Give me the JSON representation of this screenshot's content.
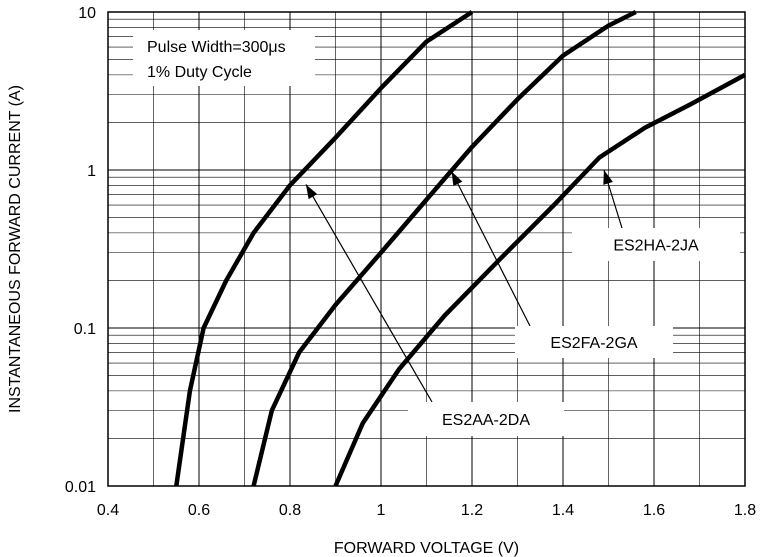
{
  "chart_data": {
    "type": "line",
    "title": "",
    "xlabel": "FORWARD VOLTAGE (V)",
    "ylabel": "INSTANTANEOUS FORWARD CURRENT (A)",
    "xlim": [
      0.4,
      1.8
    ],
    "ylim": [
      0.01,
      10
    ],
    "yscale": "log",
    "grid": true,
    "x_ticks": [
      0.4,
      0.6,
      0.8,
      1,
      1.2,
      1.4,
      1.6,
      1.8
    ],
    "x_tick_labels": [
      "0.4",
      "0.6",
      "0.8",
      "1",
      "1.2",
      "1.4",
      "1.6",
      "1.8"
    ],
    "y_tick_labels": [
      {
        "value": 0.01,
        "label": "0.01"
      },
      {
        "value": 0.1,
        "label": "0.1"
      },
      {
        "value": 1,
        "label": "1"
      },
      {
        "value": 10,
        "label": "10"
      }
    ],
    "series": [
      {
        "name": "ES2AA-2DA",
        "points": [
          [
            0.55,
            0.01
          ],
          [
            0.58,
            0.04
          ],
          [
            0.61,
            0.1
          ],
          [
            0.66,
            0.2
          ],
          [
            0.72,
            0.4
          ],
          [
            0.8,
            0.8
          ],
          [
            0.9,
            1.6
          ],
          [
            1.0,
            3.3
          ],
          [
            1.1,
            6.5
          ],
          [
            1.2,
            10
          ]
        ]
      },
      {
        "name": "ES2FA-2GA",
        "points": [
          [
            0.72,
            0.01
          ],
          [
            0.76,
            0.03
          ],
          [
            0.82,
            0.07
          ],
          [
            0.9,
            0.14
          ],
          [
            1.0,
            0.3
          ],
          [
            1.1,
            0.65
          ],
          [
            1.2,
            1.4
          ],
          [
            1.3,
            2.8
          ],
          [
            1.4,
            5.3
          ],
          [
            1.5,
            8.2
          ],
          [
            1.56,
            10
          ]
        ]
      },
      {
        "name": "ES2HA-2JA",
        "points": [
          [
            0.9,
            0.01
          ],
          [
            0.96,
            0.025
          ],
          [
            1.04,
            0.055
          ],
          [
            1.14,
            0.12
          ],
          [
            1.26,
            0.27
          ],
          [
            1.38,
            0.6
          ],
          [
            1.48,
            1.2
          ],
          [
            1.58,
            1.85
          ],
          [
            1.68,
            2.6
          ],
          [
            1.8,
            4
          ]
        ]
      }
    ],
    "annotations": [
      {
        "label": "ES2AA-2DA",
        "tip": [
          0.835,
          0.81
        ]
      },
      {
        "label": "ES2FA-2GA",
        "tip": [
          1.155,
          0.98
        ]
      },
      {
        "label": "ES2HA-2JA",
        "tip": [
          1.49,
          1.0
        ]
      }
    ],
    "legend_text": [
      "Pulse Width=300μs",
      "1% Duty Cycle"
    ]
  }
}
